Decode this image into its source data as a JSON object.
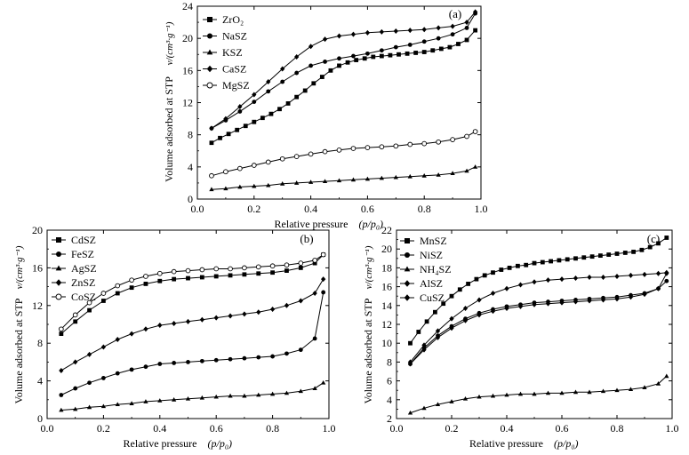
{
  "chart_data": [
    {
      "type": "line",
      "panel_label": "(a)",
      "xlabel": "Relative pressure",
      "xlabel_unit": "(p/p0)",
      "ylabel": "Volume adsorbed  at STP",
      "ylabel_unit": "v/(cm³·g⁻¹)",
      "xlim": [
        0,
        1.0
      ],
      "ylim": [
        0,
        24
      ],
      "xticks": [
        "0.0",
        "0.2",
        "0.4",
        "0.6",
        "0.8",
        "1.0"
      ],
      "yticks": [
        "0",
        "4",
        "8",
        "12",
        "16",
        "20",
        "24"
      ],
      "legend": "top-left",
      "series": [
        {
          "name": "ZrO2",
          "marker": "square",
          "x": [
            0.05,
            0.08,
            0.11,
            0.14,
            0.17,
            0.2,
            0.23,
            0.26,
            0.29,
            0.32,
            0.35,
            0.38,
            0.41,
            0.44,
            0.47,
            0.5,
            0.53,
            0.56,
            0.59,
            0.62,
            0.65,
            0.68,
            0.71,
            0.74,
            0.77,
            0.8,
            0.83,
            0.86,
            0.89,
            0.92,
            0.95,
            0.98
          ],
          "y": [
            7.0,
            7.6,
            8.1,
            8.6,
            9.1,
            9.6,
            10.1,
            10.6,
            11.2,
            11.9,
            12.7,
            13.5,
            14.4,
            15.2,
            16.0,
            16.6,
            17.0,
            17.3,
            17.5,
            17.7,
            17.8,
            17.9,
            18.0,
            18.1,
            18.2,
            18.3,
            18.5,
            18.7,
            18.9,
            19.3,
            19.8,
            21.0
          ]
        },
        {
          "name": "NaSZ",
          "marker": "circle-filled",
          "x": [
            0.05,
            0.1,
            0.15,
            0.2,
            0.25,
            0.3,
            0.35,
            0.4,
            0.45,
            0.5,
            0.55,
            0.6,
            0.65,
            0.7,
            0.75,
            0.8,
            0.85,
            0.9,
            0.95,
            0.98
          ],
          "y": [
            8.8,
            9.8,
            10.9,
            12.1,
            13.4,
            14.6,
            15.7,
            16.6,
            17.1,
            17.5,
            17.8,
            18.1,
            18.5,
            18.9,
            19.2,
            19.6,
            20.0,
            20.5,
            21.3,
            23.1
          ]
        },
        {
          "name": "KSZ",
          "marker": "triangle",
          "x": [
            0.05,
            0.1,
            0.15,
            0.2,
            0.25,
            0.3,
            0.35,
            0.4,
            0.45,
            0.5,
            0.55,
            0.6,
            0.65,
            0.7,
            0.75,
            0.8,
            0.85,
            0.9,
            0.95,
            0.98
          ],
          "y": [
            1.2,
            1.3,
            1.5,
            1.6,
            1.7,
            1.9,
            2.0,
            2.1,
            2.2,
            2.3,
            2.4,
            2.5,
            2.6,
            2.7,
            2.8,
            2.9,
            3.0,
            3.2,
            3.5,
            4.0
          ]
        },
        {
          "name": "CaSZ",
          "marker": "diamond",
          "x": [
            0.05,
            0.1,
            0.15,
            0.2,
            0.25,
            0.3,
            0.35,
            0.4,
            0.45,
            0.5,
            0.55,
            0.6,
            0.65,
            0.7,
            0.75,
            0.8,
            0.85,
            0.9,
            0.95,
            0.98
          ],
          "y": [
            8.8,
            10.0,
            11.5,
            13.0,
            14.6,
            16.2,
            17.7,
            19.0,
            19.9,
            20.3,
            20.5,
            20.7,
            20.8,
            20.9,
            21.0,
            21.1,
            21.3,
            21.5,
            22.0,
            23.3
          ]
        },
        {
          "name": "MgSZ",
          "marker": "circle-open",
          "x": [
            0.05,
            0.1,
            0.15,
            0.2,
            0.25,
            0.3,
            0.35,
            0.4,
            0.45,
            0.5,
            0.55,
            0.6,
            0.65,
            0.7,
            0.75,
            0.8,
            0.85,
            0.9,
            0.95,
            0.98
          ],
          "y": [
            2.9,
            3.4,
            3.8,
            4.2,
            4.6,
            5.0,
            5.3,
            5.6,
            5.9,
            6.1,
            6.3,
            6.4,
            6.5,
            6.6,
            6.8,
            6.9,
            7.1,
            7.4,
            7.8,
            8.4
          ]
        }
      ]
    },
    {
      "type": "line",
      "panel_label": "(b)",
      "xlabel": "Relative pressure",
      "xlabel_unit": "(p/p0)",
      "ylabel": "Volume adsorbed  at STP",
      "ylabel_unit": "v/(cm³·g⁻¹)",
      "xlim": [
        0,
        1.0
      ],
      "ylim": [
        0,
        20
      ],
      "xticks": [
        "0.0",
        "0.2",
        "0.4",
        "0.6",
        "0.8",
        "1.0"
      ],
      "yticks": [
        "0",
        "4",
        "8",
        "12",
        "16",
        "20"
      ],
      "legend": "top-left",
      "series": [
        {
          "name": "CdSZ",
          "marker": "square",
          "x": [
            0.05,
            0.1,
            0.15,
            0.2,
            0.25,
            0.3,
            0.35,
            0.4,
            0.45,
            0.5,
            0.55,
            0.6,
            0.65,
            0.7,
            0.75,
            0.8,
            0.85,
            0.9,
            0.95,
            0.98
          ],
          "y": [
            9.0,
            10.3,
            11.5,
            12.5,
            13.3,
            13.9,
            14.3,
            14.6,
            14.8,
            14.9,
            15.0,
            15.1,
            15.2,
            15.3,
            15.4,
            15.5,
            15.7,
            16.0,
            16.5,
            17.4
          ]
        },
        {
          "name": "FeSZ",
          "marker": "circle-filled",
          "x": [
            0.05,
            0.1,
            0.15,
            0.2,
            0.25,
            0.3,
            0.35,
            0.4,
            0.45,
            0.5,
            0.55,
            0.6,
            0.65,
            0.7,
            0.75,
            0.8,
            0.85,
            0.9,
            0.95,
            0.98
          ],
          "y": [
            2.5,
            3.2,
            3.8,
            4.3,
            4.8,
            5.2,
            5.5,
            5.8,
            5.9,
            6.0,
            6.1,
            6.2,
            6.3,
            6.4,
            6.5,
            6.6,
            6.9,
            7.3,
            8.5,
            13.4
          ]
        },
        {
          "name": "AgSZ",
          "marker": "triangle",
          "x": [
            0.05,
            0.1,
            0.15,
            0.2,
            0.25,
            0.3,
            0.35,
            0.4,
            0.45,
            0.5,
            0.55,
            0.6,
            0.65,
            0.7,
            0.75,
            0.8,
            0.85,
            0.9,
            0.95,
            0.98
          ],
          "y": [
            0.9,
            1.0,
            1.2,
            1.3,
            1.5,
            1.6,
            1.8,
            1.9,
            2.0,
            2.1,
            2.2,
            2.3,
            2.4,
            2.4,
            2.5,
            2.6,
            2.7,
            2.9,
            3.2,
            3.8
          ]
        },
        {
          "name": "ZnSZ",
          "marker": "diamond",
          "x": [
            0.05,
            0.1,
            0.15,
            0.2,
            0.25,
            0.3,
            0.35,
            0.4,
            0.45,
            0.5,
            0.55,
            0.6,
            0.65,
            0.7,
            0.75,
            0.8,
            0.85,
            0.9,
            0.95,
            0.98
          ],
          "y": [
            5.1,
            6.0,
            6.8,
            7.6,
            8.4,
            9.0,
            9.5,
            9.9,
            10.1,
            10.3,
            10.5,
            10.7,
            10.9,
            11.1,
            11.3,
            11.6,
            12.0,
            12.5,
            13.3,
            14.8
          ]
        },
        {
          "name": "CoSZ",
          "marker": "circle-open",
          "x": [
            0.05,
            0.1,
            0.15,
            0.2,
            0.25,
            0.3,
            0.35,
            0.4,
            0.45,
            0.5,
            0.55,
            0.6,
            0.65,
            0.7,
            0.75,
            0.8,
            0.85,
            0.9,
            0.95,
            0.98
          ],
          "y": [
            9.5,
            11.0,
            12.3,
            13.3,
            14.1,
            14.7,
            15.1,
            15.4,
            15.6,
            15.7,
            15.8,
            15.9,
            15.9,
            16.0,
            16.1,
            16.2,
            16.3,
            16.5,
            16.8,
            17.4
          ]
        }
      ]
    },
    {
      "type": "line",
      "panel_label": "(c)",
      "xlabel": "Relative pressure",
      "xlabel_unit": "(p/p0)",
      "ylabel": "Volume adsorbed  at STP",
      "ylabel_unit": "v/(cm³·g⁻¹)",
      "xlim": [
        0,
        1.0
      ],
      "ylim": [
        2,
        22
      ],
      "xticks": [
        "0.0",
        "0.2",
        "0.4",
        "0.6",
        "0.8",
        "1.0"
      ],
      "yticks": [
        "2",
        "4",
        "6",
        "8",
        "10",
        "12",
        "14",
        "16",
        "18",
        "20",
        "22"
      ],
      "legend": "top-left",
      "series": [
        {
          "name": "MnSZ",
          "marker": "square",
          "x": [
            0.05,
            0.08,
            0.11,
            0.14,
            0.17,
            0.2,
            0.23,
            0.26,
            0.29,
            0.32,
            0.35,
            0.38,
            0.41,
            0.44,
            0.47,
            0.5,
            0.53,
            0.56,
            0.59,
            0.62,
            0.65,
            0.68,
            0.71,
            0.74,
            0.77,
            0.8,
            0.83,
            0.86,
            0.89,
            0.92,
            0.95,
            0.98
          ],
          "y": [
            10.0,
            11.2,
            12.3,
            13.3,
            14.2,
            15.0,
            15.7,
            16.3,
            16.8,
            17.2,
            17.5,
            17.8,
            18.0,
            18.2,
            18.3,
            18.5,
            18.6,
            18.7,
            18.8,
            18.9,
            19.0,
            19.1,
            19.2,
            19.3,
            19.4,
            19.5,
            19.6,
            19.7,
            19.9,
            20.2,
            20.6,
            21.2
          ]
        },
        {
          "name": "NiSZ",
          "marker": "circle-filled",
          "x": [
            0.05,
            0.1,
            0.15,
            0.2,
            0.25,
            0.3,
            0.35,
            0.4,
            0.45,
            0.5,
            0.55,
            0.6,
            0.65,
            0.7,
            0.75,
            0.8,
            0.85,
            0.9,
            0.95,
            0.98
          ],
          "y": [
            7.8,
            9.5,
            10.8,
            11.8,
            12.6,
            13.2,
            13.6,
            13.9,
            14.1,
            14.3,
            14.4,
            14.5,
            14.6,
            14.7,
            14.8,
            14.9,
            15.1,
            15.3,
            15.8,
            16.6
          ]
        },
        {
          "name": "NH4SZ",
          "marker": "triangle",
          "x": [
            0.05,
            0.1,
            0.15,
            0.2,
            0.25,
            0.3,
            0.35,
            0.4,
            0.45,
            0.5,
            0.55,
            0.6,
            0.65,
            0.7,
            0.75,
            0.8,
            0.85,
            0.9,
            0.95,
            0.98
          ],
          "y": [
            2.6,
            3.1,
            3.5,
            3.8,
            4.1,
            4.3,
            4.4,
            4.5,
            4.6,
            4.6,
            4.7,
            4.7,
            4.8,
            4.8,
            4.9,
            5.0,
            5.1,
            5.3,
            5.7,
            6.5
          ]
        },
        {
          "name": "AlSZ",
          "marker": "diamond",
          "x": [
            0.05,
            0.1,
            0.15,
            0.2,
            0.25,
            0.3,
            0.35,
            0.4,
            0.45,
            0.5,
            0.55,
            0.6,
            0.65,
            0.7,
            0.75,
            0.8,
            0.85,
            0.9,
            0.95,
            0.98
          ],
          "y": [
            8.0,
            9.8,
            11.3,
            12.6,
            13.7,
            14.6,
            15.3,
            15.8,
            16.2,
            16.5,
            16.7,
            16.8,
            16.9,
            17.0,
            17.0,
            17.1,
            17.2,
            17.3,
            17.4,
            17.5
          ]
        },
        {
          "name": "CuSZ",
          "marker": "diamond",
          "x": [
            0.05,
            0.1,
            0.15,
            0.2,
            0.25,
            0.3,
            0.35,
            0.4,
            0.45,
            0.5,
            0.55,
            0.6,
            0.65,
            0.7,
            0.75,
            0.8,
            0.85,
            0.9,
            0.95,
            0.98
          ],
          "y": [
            7.8,
            9.3,
            10.6,
            11.6,
            12.4,
            13.0,
            13.4,
            13.7,
            13.9,
            14.1,
            14.2,
            14.3,
            14.4,
            14.5,
            14.6,
            14.7,
            14.9,
            15.2,
            15.8,
            17.4
          ]
        }
      ]
    }
  ]
}
